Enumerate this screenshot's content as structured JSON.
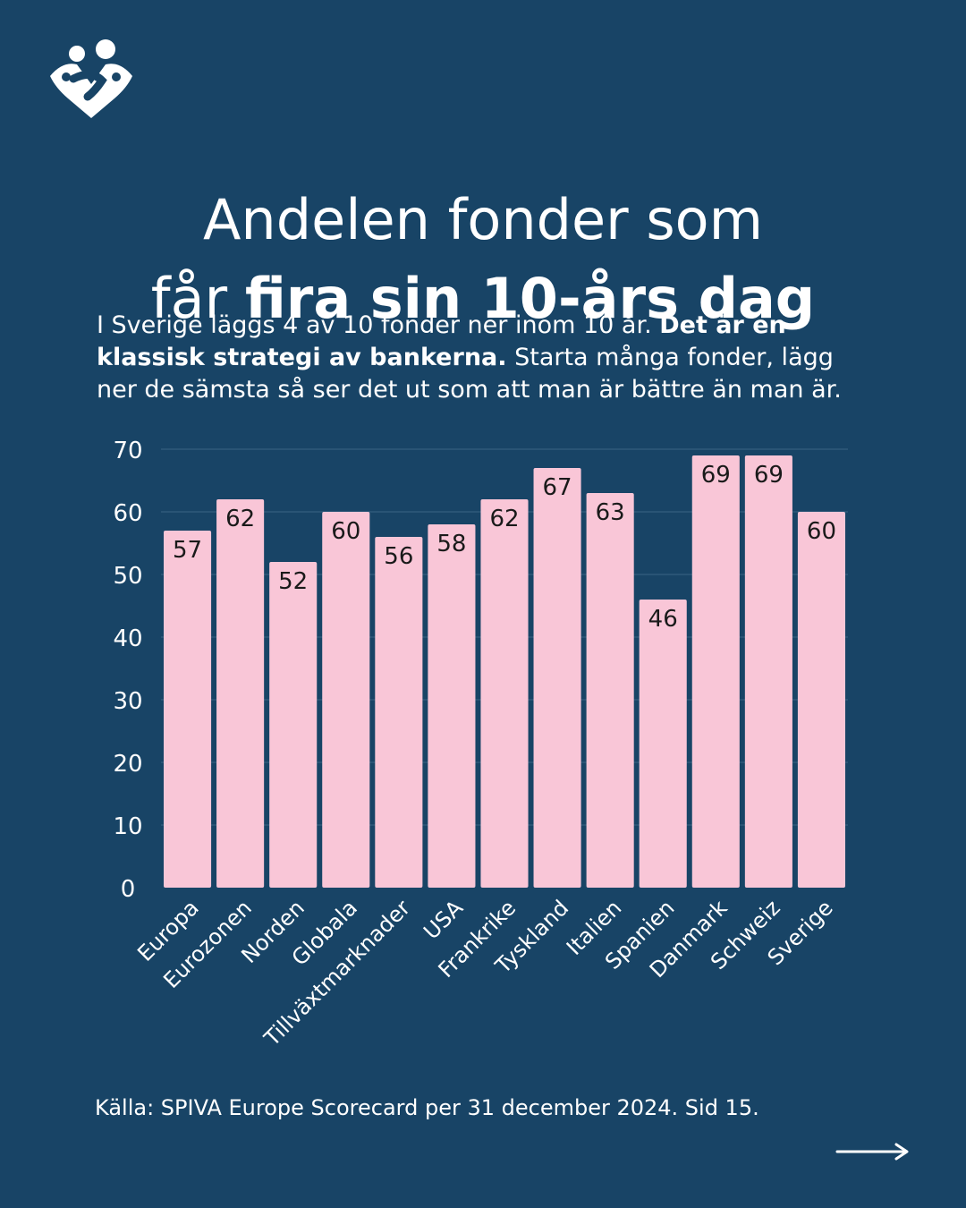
{
  "logo_icon": "hearts-people-logo-icon",
  "next_icon": "arrow-right-icon",
  "title": {
    "line1": "Andelen fonder som",
    "line2_prefix": "får ",
    "line2_bold": "fira sin 10-års dag"
  },
  "intro": {
    "part1": "I Sverige läggs 4 av 10 fonder ner inom 10 år. ",
    "bold": "Det är en klassisk strategi av bankerna.",
    "part2": " Starta många fonder, lägg ner de sämsta så ser det ut som att man är bättre än man är."
  },
  "source": "Källa: SPIVA Europe Scorecard per 31 december 2024. Sid 15.",
  "colors": {
    "background": "#184466",
    "bar": "#f9c6d7",
    "grid": "#3a6584",
    "text": "#ffffff",
    "bar_label": "#1a1a1a"
  },
  "chart_data": {
    "type": "bar",
    "categories": [
      "Europa",
      "Eurozonen",
      "Norden",
      "Globala",
      "Tillväxtmarknader",
      "USA",
      "Frankrike",
      "Tyskland",
      "Italien",
      "Spanien",
      "Danmark",
      "Schweiz",
      "Sverige"
    ],
    "values": [
      57,
      62,
      52,
      60,
      56,
      58,
      62,
      67,
      63,
      46,
      69,
      69,
      60
    ],
    "ylim": [
      0,
      70
    ],
    "yticks": [
      0,
      10,
      20,
      30,
      40,
      50,
      60,
      70
    ],
    "grid": true,
    "data_labels": true
  }
}
